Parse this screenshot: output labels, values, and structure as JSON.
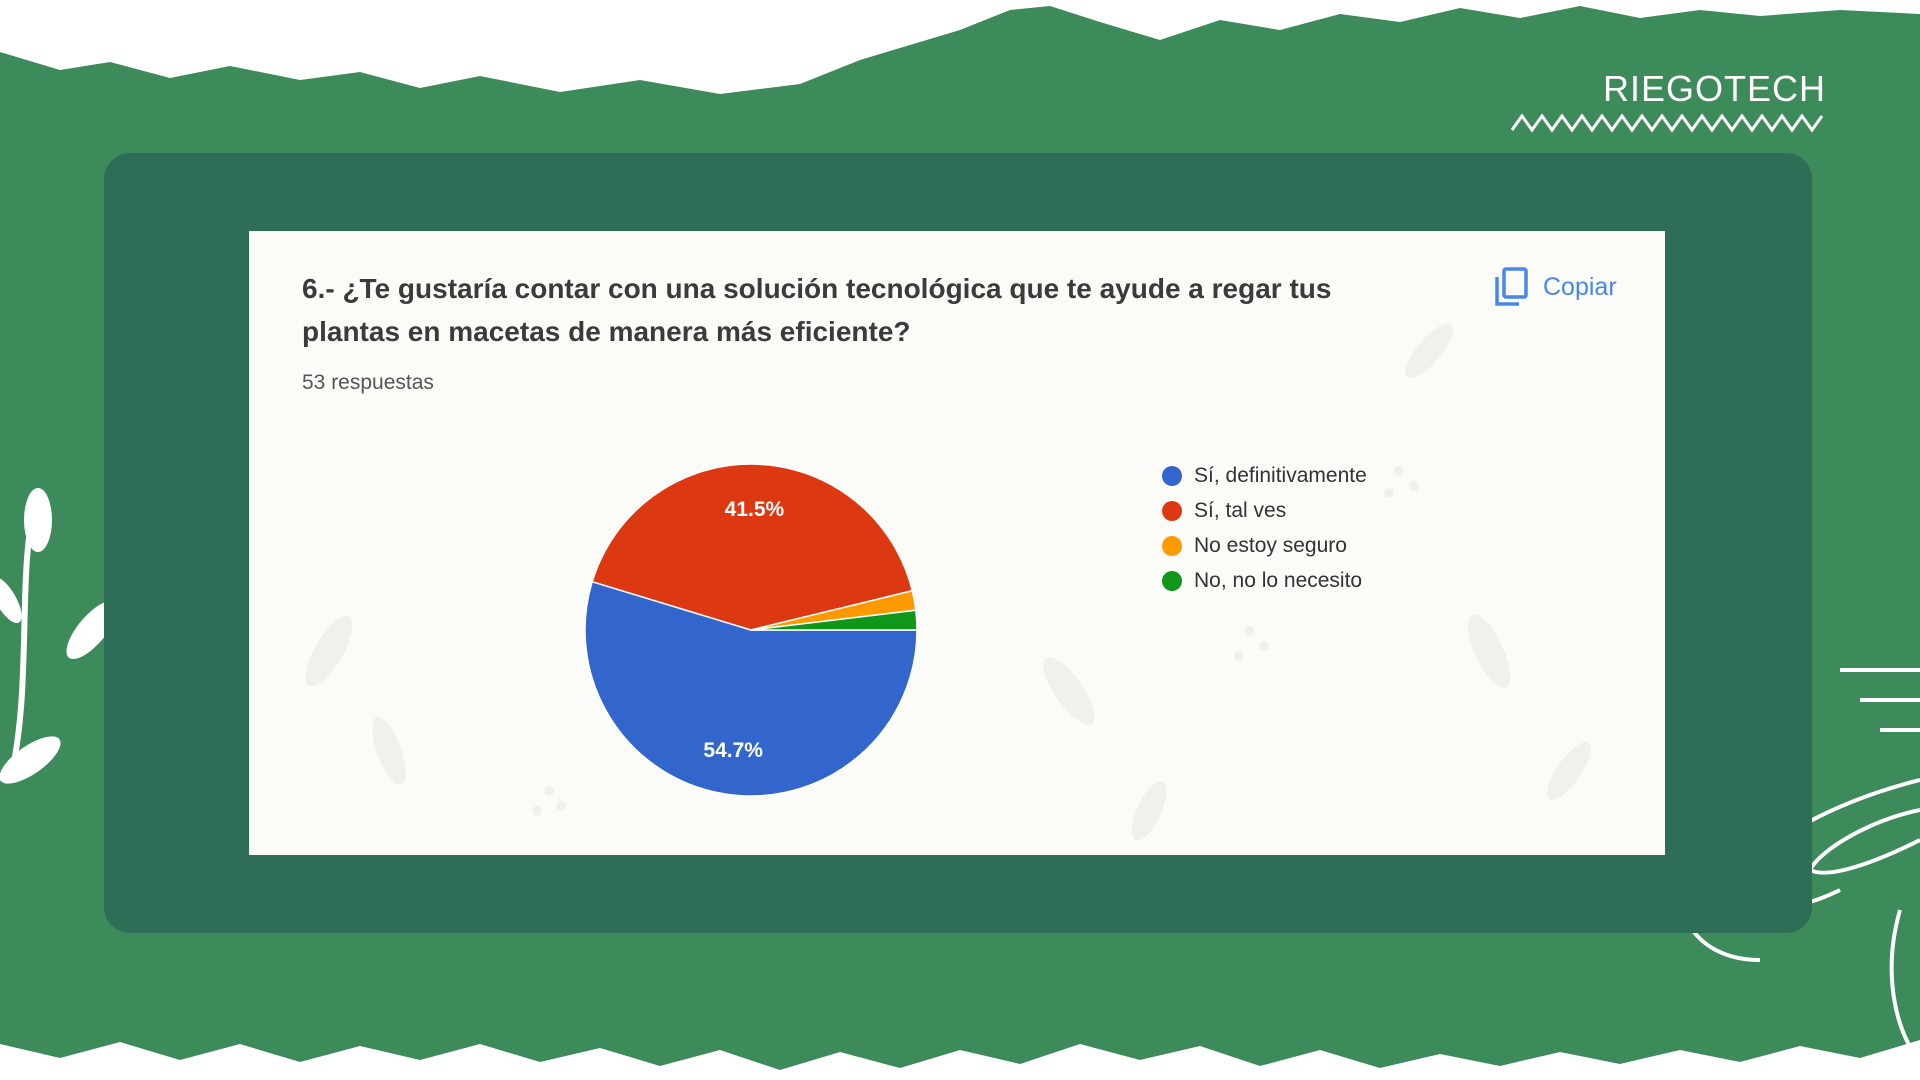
{
  "brand": {
    "name": "RIEGOTECH"
  },
  "card": {
    "question": "6.- ¿Te gustaría contar con una solución tecnológica que te ayude a regar tus plantas en macetas de manera más eficiente?",
    "responses": "53 respuestas",
    "copy_label": "Copiar"
  },
  "colors": {
    "background_green": "#3d8a5a",
    "frame_green": "#2e6e57",
    "slice_blue": "#3366cc",
    "slice_red": "#dc3912",
    "slice_orange": "#ff9900",
    "slice_green": "#109618",
    "accent_blue": "#4a86e8"
  },
  "chart_data": {
    "type": "pie",
    "title": "6.- ¿Te gustaría contar con una solución tecnológica que te ayude a regar tus plantas en macetas de manera más eficiente?",
    "categories": [
      "Sí, definitivamente",
      "Sí, tal ves",
      "No estoy seguro",
      "No, no lo necesito"
    ],
    "values": [
      54.7,
      41.5,
      1.9,
      1.9
    ],
    "data_labels": [
      "54.7%",
      "41.5%",
      "",
      ""
    ],
    "colors": [
      "#3366cc",
      "#dc3912",
      "#ff9900",
      "#109618"
    ],
    "legend_position": "right"
  }
}
